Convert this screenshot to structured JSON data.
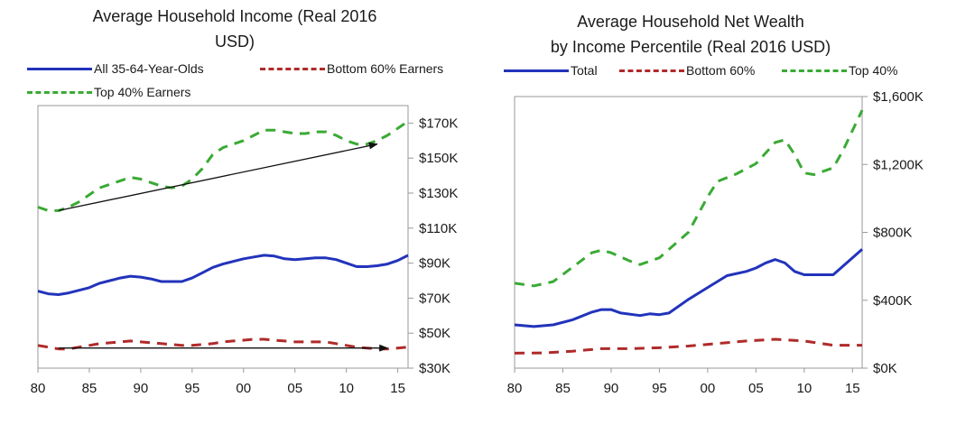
{
  "chart_data": [
    {
      "type": "line",
      "title": "Average Household Income (Real 2016 USD)",
      "title_line1": "Average Household Income (Real 2016",
      "title_line2": "USD)",
      "xlabel": "",
      "ylabel": "",
      "xlim": [
        1980,
        2016
      ],
      "ylim": [
        30,
        180
      ],
      "x_ticks": [
        1980,
        1985,
        1990,
        1995,
        2000,
        2005,
        2010,
        2015
      ],
      "x_tick_labels": [
        "80",
        "85",
        "90",
        "95",
        "00",
        "05",
        "10",
        "15"
      ],
      "y_ticks": [
        30,
        50,
        70,
        90,
        110,
        130,
        150,
        170
      ],
      "y_tick_labels": [
        "$30K",
        "$50K",
        "$70K",
        "$90K",
        "$110K",
        "$130K",
        "$150K",
        "$170K"
      ],
      "y_axis_side": "right",
      "grid": false,
      "legend_position": "top",
      "series": [
        {
          "name": "All 35-64-Year-Olds",
          "color": "#2233bb",
          "style": "solid",
          "x": [
            1980,
            1981,
            1982,
            1983,
            1984,
            1985,
            1986,
            1987,
            1988,
            1989,
            1990,
            1991,
            1992,
            1993,
            1994,
            1995,
            1996,
            1997,
            1998,
            1999,
            2000,
            2001,
            2002,
            2003,
            2004,
            2005,
            2006,
            2007,
            2008,
            2009,
            2010,
            2011,
            2012,
            2013,
            2014,
            2015,
            2016
          ],
          "values": [
            74,
            72.5,
            72,
            73,
            74.5,
            76,
            78.5,
            80,
            81.5,
            82.5,
            82,
            81,
            79.5,
            79.5,
            79.5,
            81.5,
            84.5,
            87.5,
            89.5,
            91,
            92.5,
            93.5,
            94.5,
            94,
            92.5,
            92,
            92.5,
            93,
            93,
            92,
            90,
            88,
            88,
            88.5,
            89.5,
            91.5,
            94.5
          ]
        },
        {
          "name": "Bottom 60% Earners",
          "color": "#b02a2a",
          "style": "dashed",
          "x": [
            1980,
            1981,
            1982,
            1983,
            1984,
            1985,
            1986,
            1987,
            1988,
            1989,
            1990,
            1991,
            1992,
            1993,
            1994,
            1995,
            1996,
            1997,
            1998,
            1999,
            2000,
            2001,
            2002,
            2003,
            2004,
            2005,
            2006,
            2007,
            2008,
            2009,
            2010,
            2011,
            2012,
            2013,
            2014,
            2015,
            2016
          ],
          "values": [
            43,
            42,
            41,
            41,
            42,
            43,
            44,
            44.5,
            45,
            45.5,
            45,
            44.5,
            44,
            43.5,
            43,
            43,
            43.5,
            44,
            45,
            45.5,
            46,
            46.5,
            46.5,
            46,
            45.5,
            45,
            45,
            45,
            45,
            44,
            43,
            42,
            41.5,
            41,
            41,
            41.5,
            42
          ]
        },
        {
          "name": "Top 40% Earners",
          "color": "#3aaa35",
          "style": "dashed",
          "x": [
            1980,
            1981,
            1982,
            1983,
            1984,
            1985,
            1986,
            1987,
            1988,
            1989,
            1990,
            1991,
            1992,
            1993,
            1994,
            1995,
            1996,
            1997,
            1998,
            1999,
            2000,
            2001,
            2002,
            2003,
            2004,
            2005,
            2006,
            2007,
            2008,
            2009,
            2010,
            2011,
            2012,
            2013,
            2014,
            2015,
            2016
          ],
          "values": [
            122,
            120,
            120,
            122,
            125,
            129,
            133,
            135,
            137,
            139,
            138,
            136,
            134,
            133,
            134,
            138,
            144,
            152,
            156,
            158,
            160,
            163,
            166,
            166,
            165,
            164,
            164,
            165,
            165,
            163,
            160,
            158,
            158,
            160,
            163,
            167,
            171
          ]
        }
      ],
      "annotations": [
        {
          "type": "arrow",
          "x": [
            1982,
            2013
          ],
          "y": [
            120,
            158
          ]
        },
        {
          "type": "arrow",
          "x": [
            1982,
            2014
          ],
          "y": [
            41.5,
            41.5
          ]
        }
      ]
    },
    {
      "type": "line",
      "title": "Average Household Net Wealth by Income Percentile (Real 2016 USD)",
      "title_line1": "Average Household Net Wealth",
      "title_line2": "by Income Percentile (Real 2016 USD)",
      "xlabel": "",
      "ylabel": "",
      "xlim": [
        1980,
        2016
      ],
      "ylim": [
        0,
        1600
      ],
      "x_ticks": [
        1980,
        1985,
        1990,
        1995,
        2000,
        2005,
        2010,
        2015
      ],
      "x_tick_labels": [
        "80",
        "85",
        "90",
        "95",
        "00",
        "05",
        "10",
        "15"
      ],
      "y_ticks": [
        0,
        400,
        800,
        1200,
        1600
      ],
      "y_tick_labels": [
        "$0K",
        "$400K",
        "$800K",
        "$1,200K",
        "$1,600K"
      ],
      "y_axis_side": "right",
      "grid": false,
      "legend_position": "top",
      "series": [
        {
          "name": "Total",
          "color": "#2233bb",
          "style": "solid",
          "x": [
            1980,
            1982,
            1984,
            1986,
            1988,
            1989,
            1990,
            1991,
            1993,
            1994,
            1995,
            1996,
            1998,
            2000,
            2002,
            2004,
            2005,
            2006,
            2007,
            2008,
            2009,
            2010,
            2011,
            2013,
            2014,
            2016
          ],
          "values": [
            255,
            245,
            255,
            285,
            330,
            345,
            345,
            325,
            310,
            320,
            315,
            325,
            405,
            475,
            545,
            570,
            590,
            620,
            640,
            620,
            570,
            550,
            550,
            550,
            600,
            700
          ]
        },
        {
          "name": "Bottom 60%",
          "color": "#b02a2a",
          "style": "dashed",
          "x": [
            1980,
            1983,
            1986,
            1989,
            1992,
            1995,
            1998,
            2001,
            2004,
            2007,
            2010,
            2013,
            2016
          ],
          "values": [
            88,
            90,
            100,
            115,
            115,
            120,
            130,
            145,
            160,
            170,
            160,
            135,
            135
          ]
        },
        {
          "name": "Top 40%",
          "color": "#3aaa35",
          "style": "dashed",
          "x": [
            1980,
            1982,
            1984,
            1986,
            1988,
            1989,
            1990,
            1992,
            1993,
            1995,
            1996,
            1998,
            2000,
            2001,
            2003,
            2005,
            2007,
            2008,
            2009,
            2010,
            2011,
            2013,
            2014,
            2016
          ],
          "values": [
            500,
            485,
            510,
            595,
            680,
            695,
            680,
            630,
            610,
            650,
            700,
            800,
            1010,
            1100,
            1145,
            1205,
            1330,
            1345,
            1260,
            1150,
            1140,
            1180,
            1280,
            1520
          ]
        }
      ]
    }
  ]
}
